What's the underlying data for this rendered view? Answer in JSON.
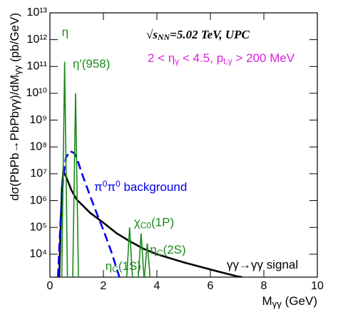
{
  "chart_data": {
    "type": "line",
    "x_label": [
      {
        "text": "M"
      },
      {
        "text": "γγ",
        "sub": true
      },
      {
        "text": " (GeV)"
      }
    ],
    "y_label": [
      {
        "text": "dσ(PbPb→PbPbγγ)/dM"
      },
      {
        "text": "γγ",
        "sub": true
      },
      {
        "text": " (pb/GeV)"
      }
    ],
    "xlim": [
      0,
      10
    ],
    "xticks": [
      0,
      2,
      4,
      6,
      8,
      10
    ],
    "ylim": [
      1400,
      10000000000000
    ],
    "log_y": true,
    "yticks": [
      {
        "value": 10000,
        "label": "10⁴"
      },
      {
        "value": 100000,
        "label": "10⁵"
      },
      {
        "value": 1000000,
        "label": "10⁶"
      },
      {
        "value": 10000000,
        "label": "10⁷"
      },
      {
        "value": 100000000,
        "label": "10⁸"
      },
      {
        "value": 1000000000,
        "label": "10⁹"
      },
      {
        "value": 10000000000,
        "label": "10¹⁰"
      },
      {
        "value": 100000000000,
        "label": "10¹¹"
      },
      {
        "value": 1000000000000,
        "label": "10¹²"
      },
      {
        "value": 10000000000000,
        "label": "10¹³"
      }
    ],
    "series": [
      {
        "color": "#000000",
        "dash": false,
        "x": [
          0.35,
          0.4,
          0.45,
          0.5,
          0.6,
          0.8,
          1,
          1.5,
          2,
          2.5,
          3,
          3.5,
          4,
          5,
          6,
          7,
          7.2
        ],
        "values": [
          1400,
          100000,
          3000000,
          12000000,
          8000000,
          2500000,
          1100000,
          350000,
          150000,
          60000,
          30000,
          16000,
          10000,
          5000,
          2700,
          1500,
          1400
        ]
      },
      {
        "color": "#0000ee",
        "dash": true,
        "x": [
          0.3,
          0.4,
          0.5,
          0.6,
          0.75,
          0.9,
          1.0,
          1.2,
          1.5,
          1.8,
          2,
          2.3,
          2.6
        ],
        "values": [
          1400,
          200000,
          8000000,
          40000000,
          70000000,
          60000000,
          40000000,
          10000000,
          1500000,
          250000,
          80000,
          12000,
          1400
        ]
      }
    ],
    "resonances": {
      "color": "#1a8a1a",
      "items": [
        {
          "x": 0.55,
          "peak": 150000000000,
          "label": [
            {
              "text": "η"
            }
          ]
        },
        {
          "x": 0.96,
          "peak": 10000000000,
          "label": [
            {
              "text": "η'(958)"
            }
          ]
        },
        {
          "x": 2.98,
          "peak": 100000,
          "label": [
            {
              "text": "η"
            },
            {
              "text": "C",
              "sub": true
            },
            {
              "text": "(1S)"
            }
          ]
        },
        {
          "x": 3.41,
          "peak": 60000,
          "label": [
            {
              "text": "χ"
            },
            {
              "text": "C0",
              "sub": true
            },
            {
              "text": "(1P)"
            }
          ]
        },
        {
          "x": 3.64,
          "peak": 25000,
          "label": [
            {
              "text": "η"
            },
            {
              "text": "C",
              "sub": true
            },
            {
              "text": "(2S)"
            }
          ]
        }
      ]
    },
    "annotations": [
      {
        "color": "#000000",
        "text": [
          {
            "text": "√"
          },
          {
            "text": "s"
          },
          {
            "text": "NN",
            "sub": true
          },
          {
            "text": "=5.02 TeV, UPC"
          }
        ]
      },
      {
        "color": "#dd22dd",
        "text": [
          {
            "text": "2 < η"
          },
          {
            "text": "γ",
            "sub": true
          },
          {
            "text": " < 4.5, p"
          },
          {
            "text": "t,γ",
            "sub": true
          },
          {
            "text": " > 200 MeV"
          }
        ]
      },
      {
        "color": "#0000ee",
        "text": [
          {
            "text": "π"
          },
          {
            "text": "0",
            "sup": true
          },
          {
            "text": "π"
          },
          {
            "text": "0",
            "sup": true
          },
          {
            "text": " background"
          }
        ]
      },
      {
        "color": "#000000",
        "text": [
          {
            "text": "γγ→γγ signal"
          }
        ]
      }
    ]
  }
}
